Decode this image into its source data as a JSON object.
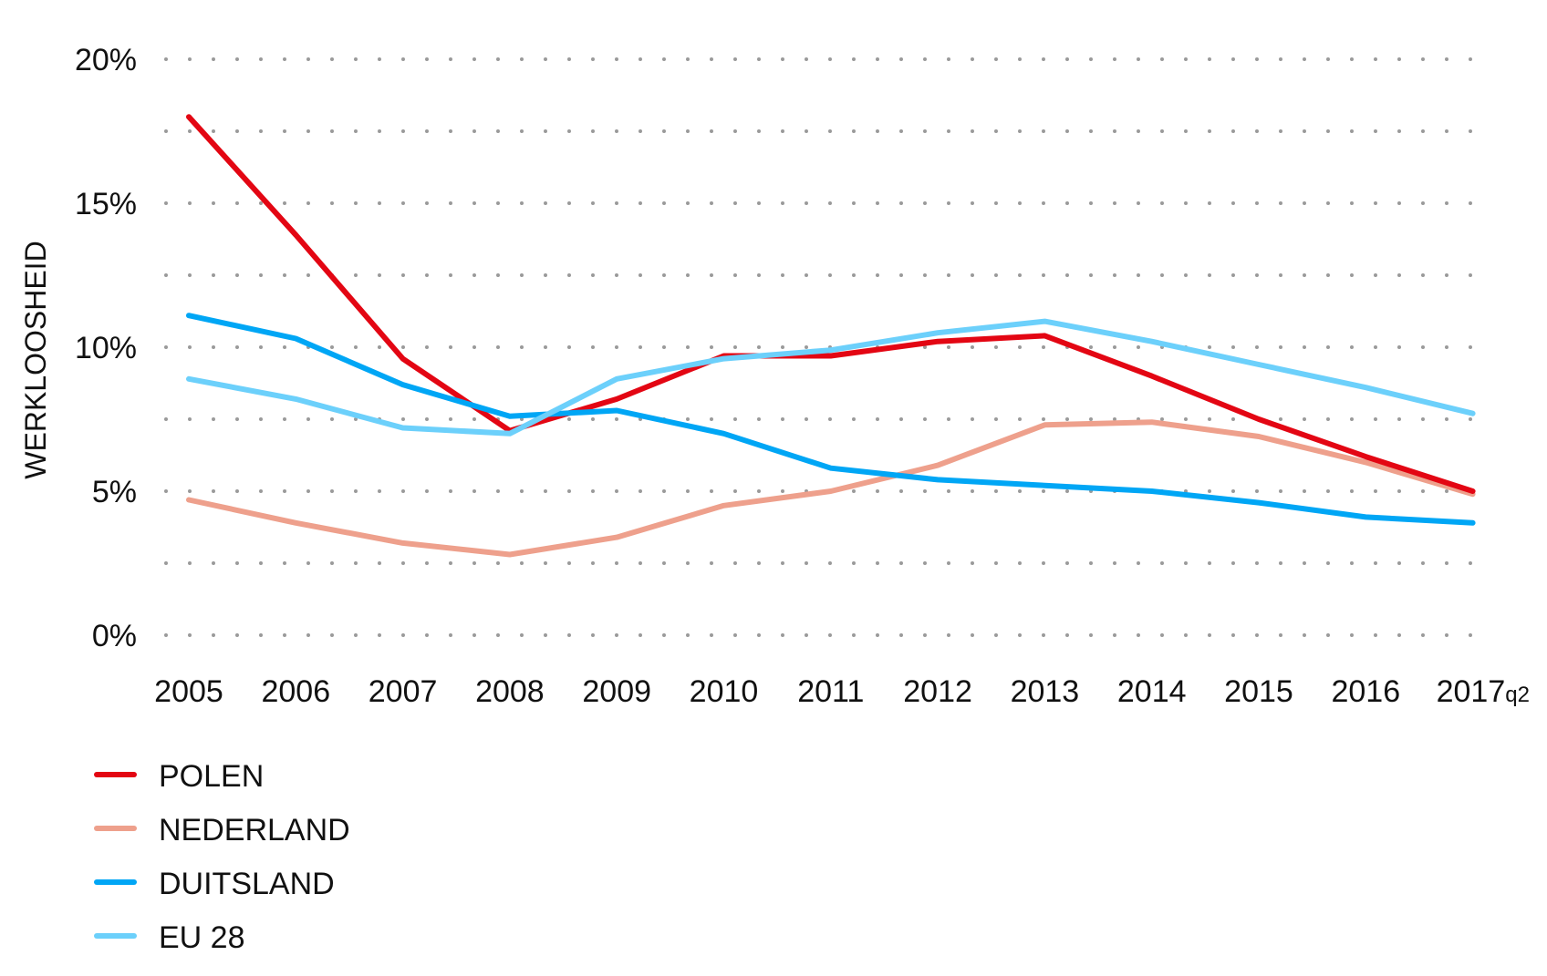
{
  "chart_data": {
    "type": "line",
    "ylabel": "WERKLOOSHEID",
    "xlabel": "",
    "ylim": [
      0,
      20
    ],
    "y_ticks": [
      "0%",
      "5%",
      "10%",
      "15%",
      "20%"
    ],
    "x": [
      "2005",
      "2006",
      "2007",
      "2008",
      "2009",
      "2010",
      "2011",
      "2012",
      "2013",
      "2014",
      "2015",
      "2016",
      "2017"
    ],
    "last_x_suffix": "q2",
    "grid": "dotted",
    "legend": "bottom-left",
    "series": [
      {
        "name": "POLEN",
        "color": "#e30613",
        "values": [
          18.0,
          13.9,
          9.6,
          7.1,
          8.2,
          9.7,
          9.7,
          10.2,
          10.4,
          9.0,
          7.5,
          6.2,
          5.0
        ]
      },
      {
        "name": "NEDERLAND",
        "color": "#eea08c",
        "values": [
          4.7,
          3.9,
          3.2,
          2.8,
          3.4,
          4.5,
          5.0,
          5.9,
          7.3,
          7.4,
          6.9,
          6.0,
          4.9
        ]
      },
      {
        "name": "DUITSLAND",
        "color": "#00a6f5",
        "values": [
          11.1,
          10.3,
          8.7,
          7.6,
          7.8,
          7.0,
          5.8,
          5.4,
          5.2,
          5.0,
          4.6,
          4.1,
          3.9
        ]
      },
      {
        "name": "EU 28",
        "color": "#6cd0fb",
        "values": [
          8.9,
          8.2,
          7.2,
          7.0,
          8.9,
          9.6,
          9.9,
          10.5,
          10.9,
          10.2,
          9.4,
          8.6,
          7.7
        ]
      }
    ]
  }
}
